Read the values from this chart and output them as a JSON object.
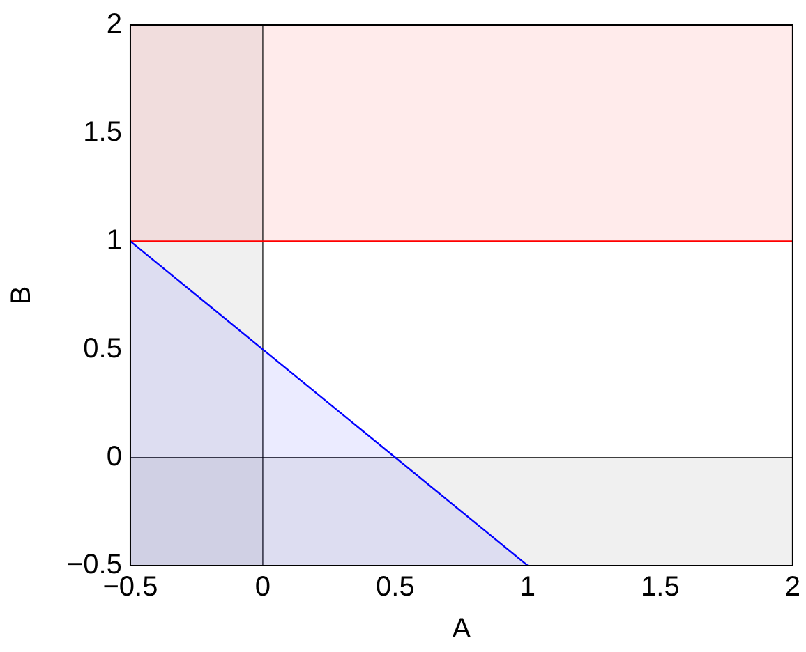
{
  "chart_data": {
    "type": "area",
    "xlabel": "A",
    "ylabel": "B",
    "xlim": [
      -0.5,
      2
    ],
    "ylim": [
      -0.5,
      2
    ],
    "xticks": [
      {
        "value": -0.5,
        "label": "−0.5"
      },
      0,
      0.5,
      1,
      1.5,
      2
    ],
    "yticks": [
      {
        "value": -0.5,
        "label": "−0.5"
      },
      0,
      0.5,
      1,
      1.5,
      2
    ],
    "grid": false,
    "legend": false,
    "series": [
      {
        "color": "#0000ff",
        "x": [
          -0.5,
          1
        ],
        "values": [
          1,
          -0.5
        ]
      }
    ],
    "bands": [
      {
        "axis": "x",
        "from": -0.5,
        "to": 0,
        "color": "#808080"
      },
      {
        "axis": "y",
        "from": -0.5,
        "to": 0,
        "color": "#808080"
      },
      {
        "axis": "y",
        "from": 1,
        "to": 2,
        "color": "#ff0000"
      }
    ],
    "ref_lines": [
      {
        "axis": "x",
        "value": 0,
        "color": "#000000"
      },
      {
        "axis": "y",
        "value": 0,
        "color": "#000000"
      },
      {
        "axis": "y",
        "value": 1,
        "color": "#ff0000"
      }
    ]
  }
}
